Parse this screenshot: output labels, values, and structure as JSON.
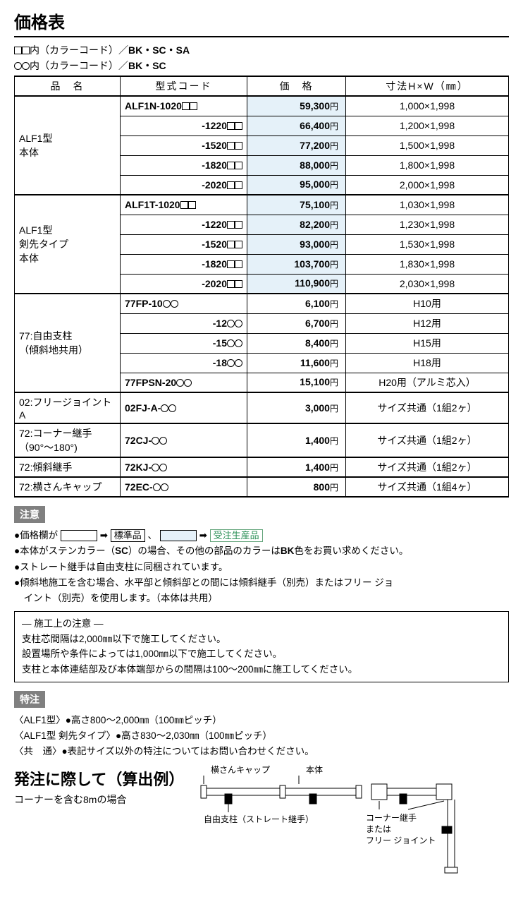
{
  "title": "価格表",
  "colorcode_lines": [
    {
      "sym_html": "<span class='sq'></span><span class='sq'></span>内（カラーコード）／",
      "codes": "BK・SC・SA"
    },
    {
      "sym_html": "<span class='circ'></span><span class='circ'></span>内（カラーコード）／",
      "codes": "BK・SC"
    }
  ],
  "headers": {
    "name": "品　名",
    "code": "型式コード",
    "price": "価　格",
    "dim": "寸法H×W（㎜）"
  },
  "groups": [
    {
      "name_html": "ALF1型<br>本体",
      "rows": [
        {
          "code_html": "ALF1N-1020<span class='sq'></span><span class='sq'></span>",
          "price": "59,300",
          "dim": "1,000×1,998",
          "hl": true
        },
        {
          "code_html": "-1220<span class='sq'></span><span class='sq'></span>",
          "right": true,
          "price": "66,400",
          "dim": "1,200×1,998",
          "hl": true
        },
        {
          "code_html": "-1520<span class='sq'></span><span class='sq'></span>",
          "right": true,
          "price": "77,200",
          "dim": "1,500×1,998",
          "hl": true
        },
        {
          "code_html": "-1820<span class='sq'></span><span class='sq'></span>",
          "right": true,
          "price": "88,000",
          "dim": "1,800×1,998",
          "hl": true
        },
        {
          "code_html": "-2020<span class='sq'></span><span class='sq'></span>",
          "right": true,
          "price": "95,000",
          "dim": "2,000×1,998",
          "hl": true
        }
      ]
    },
    {
      "name_html": "ALF1型<br>剣先タイプ<br>本体",
      "rows": [
        {
          "code_html": "ALF1T-1020<span class='sq'></span><span class='sq'></span>",
          "price": "75,100",
          "dim": "1,030×1,998",
          "hl": true
        },
        {
          "code_html": "-1220<span class='sq'></span><span class='sq'></span>",
          "right": true,
          "price": "82,200",
          "dim": "1,230×1,998",
          "hl": true
        },
        {
          "code_html": "-1520<span class='sq'></span><span class='sq'></span>",
          "right": true,
          "price": "93,000",
          "dim": "1,530×1,998",
          "hl": true
        },
        {
          "code_html": "-1820<span class='sq'></span><span class='sq'></span>",
          "right": true,
          "price": "103,700",
          "dim": "1,830×1,998",
          "hl": true
        },
        {
          "code_html": "-2020<span class='sq'></span><span class='sq'></span>",
          "right": true,
          "price": "110,900",
          "dim": "2,030×1,998",
          "hl": true
        }
      ]
    },
    {
      "name_html": "77:自由支柱<br>（傾斜地共用）",
      "rows": [
        {
          "code_html": "77FP-10<span class='circ'></span><span class='circ'></span>",
          "price": "6,100",
          "dim": "H10用"
        },
        {
          "code_html": "-12<span class='circ'></span><span class='circ'></span>",
          "right": true,
          "price": "6,700",
          "dim": "H12用"
        },
        {
          "code_html": "-15<span class='circ'></span><span class='circ'></span>",
          "right": true,
          "price": "8,400",
          "dim": "H15用"
        },
        {
          "code_html": "-18<span class='circ'></span><span class='circ'></span>",
          "right": true,
          "price": "11,600",
          "dim": "H18用"
        },
        {
          "code_html": "77FPSN-20<span class='circ'></span><span class='circ'></span>",
          "price": "15,100",
          "dim": "H20用（アルミ芯入）"
        }
      ]
    },
    {
      "name_html": "02:フリージョイントA",
      "rows": [
        {
          "code_html": "02FJ-A-<span class='circ'></span><span class='circ'></span>",
          "price": "3,000",
          "dim": "サイズ共通（1組2ヶ）"
        }
      ]
    },
    {
      "name_html": "72:コーナー継手<br>（90°〜180°)",
      "rows": [
        {
          "code_html": "72CJ-<span class='circ'></span><span class='circ'></span>",
          "price": "1,400",
          "dim": "サイズ共通（1組2ヶ）"
        }
      ]
    },
    {
      "name_html": "72:傾斜継手",
      "rows": [
        {
          "code_html": "72KJ-<span class='circ'></span><span class='circ'></span>",
          "price": "1,400",
          "dim": "サイズ共通（1組2ヶ）"
        }
      ]
    },
    {
      "name_html": "72:横さんキャップ",
      "rows": [
        {
          "code_html": "72EC-<span class='circ'></span><span class='circ'></span>",
          "price": "800",
          "dim": "サイズ共通（1組4ヶ）"
        }
      ]
    }
  ],
  "notice_badge": "注意",
  "notice_price_legend_text": "●価格欄が",
  "notice_std_label": "標準品",
  "notice_order_label": "受注生産品",
  "notice_lines": [
    "●本体がステンカラー（<b>SC</b>）の場合、その他の部品のカラーは<b>BK</b>色をお買い求めください。",
    "●ストレート継手は自由支柱に同梱されています。",
    "●傾斜地施工を含む場合、水平部と傾斜部との間には傾斜継手（別売）またはフリー ジョ",
    "イント（別売）を使用します。（本体は共用）"
  ],
  "construction_title": "― 施工上の注意 ―",
  "construction_lines": [
    "支柱芯間隔は2,000㎜以下で施工してください。",
    "設置場所や条件によっては1,000㎜以下で施工してください。",
    "支柱と本体連結部及び本体端部からの間隔は100〜200㎜に施工してください。"
  ],
  "special_badge": "特注",
  "special_lines": [
    "〈ALF1型〉●高さ800〜2,000㎜（100㎜ピッチ）",
    "〈ALF1型 剣先タイプ〉●高さ830〜2,030㎜（100㎜ピッチ）",
    "〈共　通〉●表記サイズ以外の特注についてはお問い合わせください。"
  ],
  "order_section_title": "発注に際して（算出例）",
  "order_section_sub": "コーナーを含む8mの場合",
  "diagram": {
    "labels": {
      "yokosan": "横さんキャップ",
      "hontai": "本体",
      "shichu": "自由支柱（ストレート継手）",
      "corner": "コーナー継手",
      "matawa": "または",
      "freejoint": "フリー ジョイント"
    },
    "colors": {
      "line": "#000",
      "fill": "#fff"
    }
  },
  "arrow": "➡"
}
